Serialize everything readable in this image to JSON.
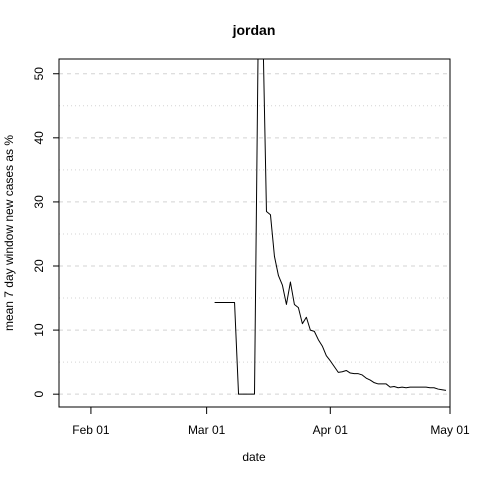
{
  "chart_data": {
    "type": "line",
    "title": "jordan",
    "xlabel": "date",
    "ylabel": "mean  7  day window new cases as %",
    "x_ticks": [
      {
        "date": "2020-02-01",
        "label": "Feb 01"
      },
      {
        "date": "2020-03-01",
        "label": "Mar 01"
      },
      {
        "date": "2020-04-01",
        "label": "Apr 01"
      },
      {
        "date": "2020-05-01",
        "label": "May 01"
      }
    ],
    "y_ticks": [
      0,
      10,
      20,
      30,
      40,
      50
    ],
    "xlim": [
      "2020-01-24",
      "2020-05-01"
    ],
    "ylim": [
      -2,
      52.3
    ],
    "grid": {
      "horizontal": true,
      "style": "dotted"
    },
    "series": [
      {
        "color": "#000000",
        "x": [
          "2020-03-03",
          "2020-03-04",
          "2020-03-05",
          "2020-03-06",
          "2020-03-07",
          "2020-03-08",
          "2020-03-09",
          "2020-03-10",
          "2020-03-11",
          "2020-03-12",
          "2020-03-13",
          "2020-03-14",
          "2020-03-15",
          "2020-03-16",
          "2020-03-17",
          "2020-03-18",
          "2020-03-19",
          "2020-03-20",
          "2020-03-21",
          "2020-03-22",
          "2020-03-23",
          "2020-03-24",
          "2020-03-25",
          "2020-03-26",
          "2020-03-27",
          "2020-03-28",
          "2020-03-29",
          "2020-03-30",
          "2020-03-31",
          "2020-04-01",
          "2020-04-02",
          "2020-04-03",
          "2020-04-04",
          "2020-04-05",
          "2020-04-06",
          "2020-04-07",
          "2020-04-08",
          "2020-04-09",
          "2020-04-10",
          "2020-04-11",
          "2020-04-12",
          "2020-04-13",
          "2020-04-14",
          "2020-04-15",
          "2020-04-16",
          "2020-04-17",
          "2020-04-18",
          "2020-04-19",
          "2020-04-20",
          "2020-04-21",
          "2020-04-22",
          "2020-04-23",
          "2020-04-24",
          "2020-04-25",
          "2020-04-26",
          "2020-04-27",
          "2020-04-28",
          "2020-04-29",
          "2020-04-30"
        ],
        "y": [
          14.3,
          14.3,
          14.3,
          14.3,
          14.3,
          14.3,
          0,
          0,
          0,
          0,
          0,
          60,
          60,
          28.5,
          28,
          21.5,
          18.5,
          17,
          14,
          17.5,
          14,
          13.5,
          11,
          12,
          10,
          9.8,
          8.5,
          7.5,
          6,
          5.2,
          4.3,
          3.4,
          3.5,
          3.7,
          3.3,
          3.2,
          3.2,
          3.0,
          2.5,
          2.2,
          1.8,
          1.6,
          1.6,
          1.6,
          1.1,
          1.2,
          1.0,
          1.1,
          1.0,
          1.1,
          1.1,
          1.1,
          1.1,
          1.1,
          1.0,
          1.0,
          0.8,
          0.7,
          0.6
        ]
      }
    ]
  }
}
